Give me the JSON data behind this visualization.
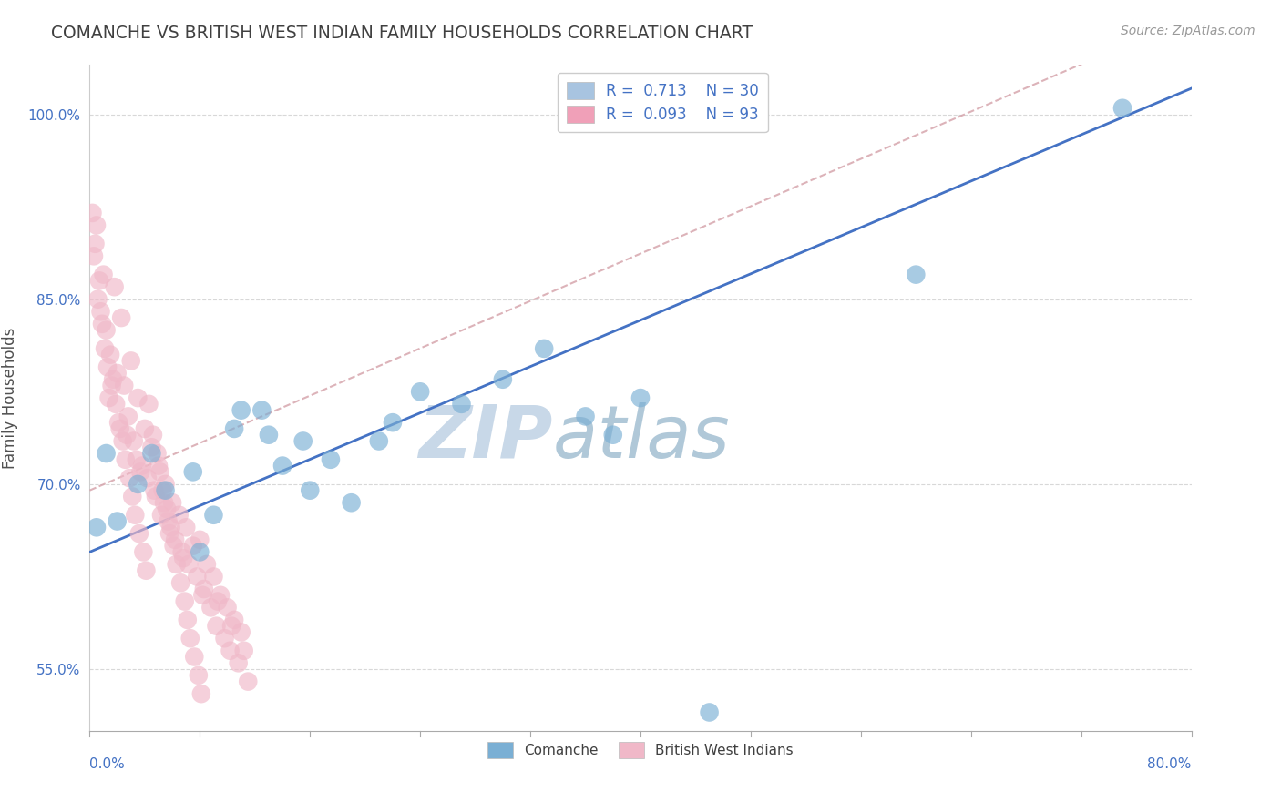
{
  "title": "COMANCHE VS BRITISH WEST INDIAN FAMILY HOUSEHOLDS CORRELATION CHART",
  "source_text": "Source: ZipAtlas.com",
  "ylabel": "Family Households",
  "y_ticks": [
    55.0,
    70.0,
    85.0,
    100.0
  ],
  "y_tick_labels": [
    "55.0%",
    "70.0%",
    "85.0%",
    "100.0%"
  ],
  "x_tick_labels": [
    "0.0%",
    "80.0%"
  ],
  "xlim": [
    0.0,
    80.0
  ],
  "ylim": [
    50.0,
    104.0
  ],
  "legend_entries": [
    {
      "label": "R =  0.713    N = 30",
      "color": "#a8c4e0"
    },
    {
      "label": "R =  0.093    N = 93",
      "color": "#f0a0b8"
    }
  ],
  "comanche_color": "#7aafd4",
  "bwi_color": "#f0b8c8",
  "comanche_line_color": "#4472c4",
  "bwi_line_color": "#d4a0a8",
  "watermark_zip": "ZIP",
  "watermark_atlas": "atlas",
  "watermark_zip_color": "#c8d8e8",
  "watermark_atlas_color": "#b0c8d8",
  "background_color": "#ffffff",
  "grid_color": "#d8d8d8",
  "title_color": "#404040",
  "axis_label_color": "#4472c4",
  "comanche_line_intercept": 64.5,
  "comanche_line_slope": 0.47,
  "bwi_line_intercept": 69.5,
  "bwi_line_slope": 0.48,
  "comanche_points": [
    [
      0.5,
      66.5
    ],
    [
      1.2,
      72.5
    ],
    [
      2.0,
      67.0
    ],
    [
      3.5,
      70.0
    ],
    [
      4.5,
      72.5
    ],
    [
      5.5,
      69.5
    ],
    [
      7.5,
      71.0
    ],
    [
      9.0,
      67.5
    ],
    [
      10.5,
      74.5
    ],
    [
      12.5,
      76.0
    ],
    [
      14.0,
      71.5
    ],
    [
      15.5,
      73.5
    ],
    [
      17.5,
      72.0
    ],
    [
      19.0,
      68.5
    ],
    [
      22.0,
      75.0
    ],
    [
      24.0,
      77.5
    ],
    [
      27.0,
      76.5
    ],
    [
      30.0,
      78.5
    ],
    [
      33.0,
      81.0
    ],
    [
      36.0,
      75.5
    ],
    [
      38.0,
      74.0
    ],
    [
      40.0,
      77.0
    ],
    [
      11.0,
      76.0
    ],
    [
      13.0,
      74.0
    ],
    [
      16.0,
      69.5
    ],
    [
      21.0,
      73.5
    ],
    [
      8.0,
      64.5
    ],
    [
      45.0,
      51.5
    ],
    [
      60.0,
      87.0
    ],
    [
      75.0,
      100.5
    ]
  ],
  "bwi_points": [
    [
      0.3,
      88.5
    ],
    [
      0.5,
      91.0
    ],
    [
      0.8,
      84.0
    ],
    [
      1.0,
      87.0
    ],
    [
      1.2,
      82.5
    ],
    [
      1.5,
      80.5
    ],
    [
      1.8,
      86.0
    ],
    [
      2.0,
      79.0
    ],
    [
      2.3,
      83.5
    ],
    [
      2.5,
      78.0
    ],
    [
      2.8,
      75.5
    ],
    [
      3.0,
      80.0
    ],
    [
      3.2,
      73.5
    ],
    [
      3.5,
      77.0
    ],
    [
      3.8,
      71.5
    ],
    [
      4.0,
      74.5
    ],
    [
      4.2,
      70.5
    ],
    [
      4.5,
      73.0
    ],
    [
      4.8,
      69.0
    ],
    [
      5.0,
      71.5
    ],
    [
      5.2,
      67.5
    ],
    [
      5.5,
      70.0
    ],
    [
      5.8,
      66.0
    ],
    [
      6.0,
      68.5
    ],
    [
      6.2,
      65.5
    ],
    [
      6.5,
      67.5
    ],
    [
      6.8,
      64.0
    ],
    [
      7.0,
      66.5
    ],
    [
      7.2,
      63.5
    ],
    [
      7.5,
      65.0
    ],
    [
      7.8,
      62.5
    ],
    [
      8.0,
      65.5
    ],
    [
      8.2,
      61.0
    ],
    [
      8.5,
      63.5
    ],
    [
      8.8,
      60.0
    ],
    [
      9.0,
      62.5
    ],
    [
      9.2,
      58.5
    ],
    [
      9.5,
      61.0
    ],
    [
      9.8,
      57.5
    ],
    [
      10.0,
      60.0
    ],
    [
      10.2,
      56.5
    ],
    [
      10.5,
      59.0
    ],
    [
      10.8,
      55.5
    ],
    [
      11.0,
      58.0
    ],
    [
      11.5,
      54.0
    ],
    [
      0.2,
      92.0
    ],
    [
      0.4,
      89.5
    ],
    [
      0.6,
      85.0
    ],
    [
      0.9,
      83.0
    ],
    [
      1.1,
      81.0
    ],
    [
      1.3,
      79.5
    ],
    [
      1.6,
      78.0
    ],
    [
      1.9,
      76.5
    ],
    [
      2.1,
      75.0
    ],
    [
      2.4,
      73.5
    ],
    [
      2.6,
      72.0
    ],
    [
      2.9,
      70.5
    ],
    [
      3.1,
      69.0
    ],
    [
      3.3,
      67.5
    ],
    [
      3.6,
      66.0
    ],
    [
      3.9,
      64.5
    ],
    [
      4.1,
      63.0
    ],
    [
      4.3,
      76.5
    ],
    [
      4.6,
      74.0
    ],
    [
      4.9,
      72.5
    ],
    [
      5.1,
      71.0
    ],
    [
      5.3,
      69.5
    ],
    [
      5.6,
      68.0
    ],
    [
      5.9,
      66.5
    ],
    [
      6.1,
      65.0
    ],
    [
      6.3,
      63.5
    ],
    [
      6.6,
      62.0
    ],
    [
      6.9,
      60.5
    ],
    [
      7.1,
      59.0
    ],
    [
      7.3,
      57.5
    ],
    [
      7.6,
      56.0
    ],
    [
      7.9,
      54.5
    ],
    [
      8.1,
      53.0
    ],
    [
      1.4,
      77.0
    ],
    [
      2.2,
      74.5
    ],
    [
      3.4,
      72.0
    ],
    [
      4.7,
      69.5
    ],
    [
      5.7,
      67.0
    ],
    [
      6.7,
      64.5
    ],
    [
      8.3,
      61.5
    ],
    [
      9.3,
      60.5
    ],
    [
      10.3,
      58.5
    ],
    [
      11.2,
      56.5
    ],
    [
      0.7,
      86.5
    ],
    [
      1.7,
      78.5
    ],
    [
      2.7,
      74.0
    ],
    [
      3.7,
      71.0
    ],
    [
      5.4,
      68.5
    ]
  ]
}
